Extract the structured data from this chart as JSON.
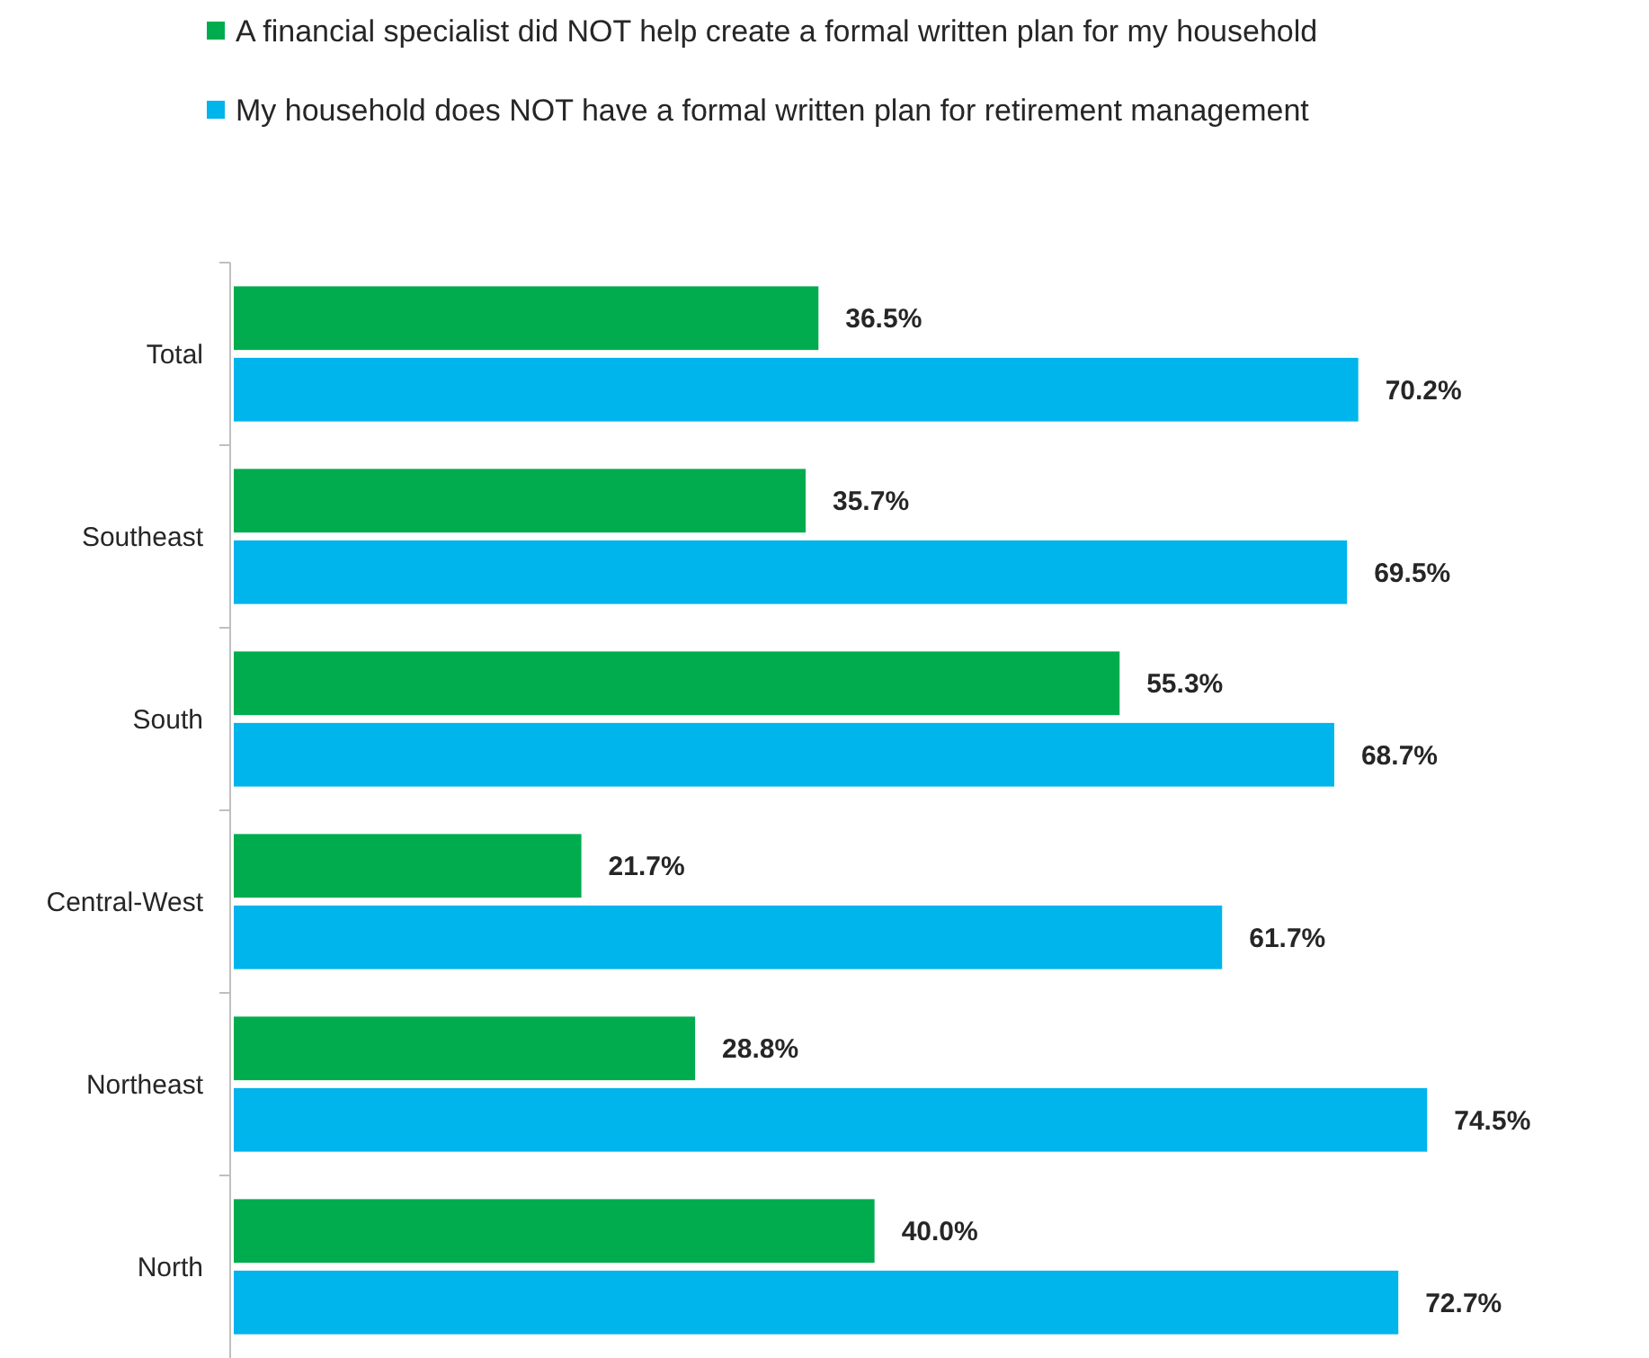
{
  "chart_data": {
    "type": "bar",
    "orientation": "horizontal",
    "categories": [
      "Total",
      "Southeast",
      "South",
      "Central-West",
      "Northeast",
      "North"
    ],
    "series": [
      {
        "name": "A financial specialist did NOT help create a formal written plan for my household",
        "color": "#00ac4e",
        "values": [
          36.5,
          35.7,
          55.3,
          21.7,
          28.8,
          40.0
        ],
        "value_labels": [
          "36.5%",
          "35.7%",
          "55.3%",
          "21.7%",
          "28.8%",
          "40.0%"
        ]
      },
      {
        "name": "My household does NOT have a formal written plan for retirement management",
        "color": "#00b4ec",
        "values": [
          70.2,
          69.5,
          68.7,
          61.7,
          74.5,
          72.7
        ],
        "value_labels": [
          "70.2%",
          "69.5%",
          "68.7%",
          "61.7%",
          "74.5%",
          "72.7%"
        ]
      }
    ],
    "legend": "top",
    "grid": false
  }
}
